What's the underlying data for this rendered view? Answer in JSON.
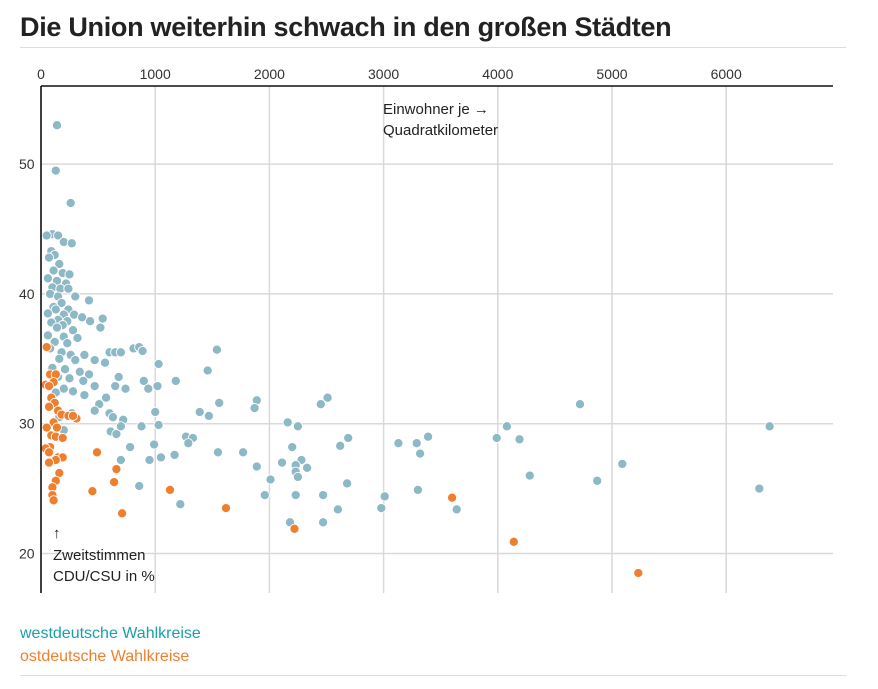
{
  "title": "Die Union weiterhin schwach in den großen Städten",
  "legend": {
    "west_label": "westdeutsche Wahlkreise",
    "east_label": "ostdeutsche Wahlkreise"
  },
  "colors": {
    "west": "#8db8c6",
    "east": "#f07f2d",
    "legend_west": "#1aa0a8",
    "legend_east": "#f07f2d"
  },
  "chart_data": {
    "type": "scatter",
    "title": "Die Union weiterhin schwach in den großen Städten",
    "x_label_lines": [
      "Einwohner je →",
      "Quadratkilometer"
    ],
    "y_label_lines": [
      "↑",
      "Zweitstimmen",
      "CDU/CSU in %"
    ],
    "xlim": [
      0,
      6900
    ],
    "ylim": [
      17,
      56
    ],
    "x_ticks": [
      0,
      1000,
      2000,
      3000,
      4000,
      5000,
      6000
    ],
    "y_ticks": [
      20,
      30,
      40,
      50
    ],
    "grid": true,
    "series": [
      {
        "name": "westdeutsche Wahlkreise",
        "points": [
          [
            140,
            53.0
          ],
          [
            130,
            49.5
          ],
          [
            260,
            47.0
          ],
          [
            100,
            44.6
          ],
          [
            150,
            44.5
          ],
          [
            50,
            44.5
          ],
          [
            200,
            44.0
          ],
          [
            270,
            43.9
          ],
          [
            90,
            43.3
          ],
          [
            120,
            43.0
          ],
          [
            70,
            42.8
          ],
          [
            160,
            42.3
          ],
          [
            110,
            41.8
          ],
          [
            190,
            41.6
          ],
          [
            250,
            41.5
          ],
          [
            60,
            41.2
          ],
          [
            140,
            41.0
          ],
          [
            220,
            40.8
          ],
          [
            100,
            40.5
          ],
          [
            170,
            40.4
          ],
          [
            240,
            40.4
          ],
          [
            80,
            40.0
          ],
          [
            150,
            39.8
          ],
          [
            300,
            39.8
          ],
          [
            420,
            39.5
          ],
          [
            180,
            39.3
          ],
          [
            110,
            39.0
          ],
          [
            130,
            38.8
          ],
          [
            240,
            38.8
          ],
          [
            60,
            38.5
          ],
          [
            200,
            38.4
          ],
          [
            290,
            38.4
          ],
          [
            360,
            38.2
          ],
          [
            540,
            38.1
          ],
          [
            150,
            38.0
          ],
          [
            230,
            37.9
          ],
          [
            90,
            37.8
          ],
          [
            190,
            37.6
          ],
          [
            430,
            37.9
          ],
          [
            520,
            37.4
          ],
          [
            140,
            37.4
          ],
          [
            280,
            37.2
          ],
          [
            60,
            36.8
          ],
          [
            200,
            36.7
          ],
          [
            320,
            36.6
          ],
          [
            120,
            36.3
          ],
          [
            230,
            36.2
          ],
          [
            80,
            35.8
          ],
          [
            600,
            35.5
          ],
          [
            650,
            35.5
          ],
          [
            700,
            35.5
          ],
          [
            810,
            35.8
          ],
          [
            860,
            35.9
          ],
          [
            890,
            35.6
          ],
          [
            180,
            35.5
          ],
          [
            260,
            35.3
          ],
          [
            380,
            35.3
          ],
          [
            160,
            35.0
          ],
          [
            300,
            34.9
          ],
          [
            470,
            34.9
          ],
          [
            560,
            34.7
          ],
          [
            1030,
            34.6
          ],
          [
            1460,
            34.1
          ],
          [
            210,
            34.2
          ],
          [
            100,
            34.3
          ],
          [
            340,
            34.0
          ],
          [
            420,
            33.8
          ],
          [
            150,
            33.6
          ],
          [
            250,
            33.5
          ],
          [
            680,
            33.6
          ],
          [
            370,
            33.3
          ],
          [
            900,
            33.3
          ],
          [
            1180,
            33.3
          ],
          [
            1020,
            32.9
          ],
          [
            940,
            32.7
          ],
          [
            470,
            32.9
          ],
          [
            650,
            32.9
          ],
          [
            740,
            32.7
          ],
          [
            200,
            32.7
          ],
          [
            280,
            32.5
          ],
          [
            130,
            32.4
          ],
          [
            380,
            32.2
          ],
          [
            570,
            32.0
          ],
          [
            510,
            31.5
          ],
          [
            1540,
            35.7
          ],
          [
            1890,
            31.8
          ],
          [
            1870,
            31.2
          ],
          [
            2510,
            32.0
          ],
          [
            2450,
            31.5
          ],
          [
            1560,
            31.6
          ],
          [
            600,
            30.8
          ],
          [
            630,
            30.5
          ],
          [
            470,
            31.0
          ],
          [
            270,
            30.8
          ],
          [
            160,
            30.5
          ],
          [
            1000,
            30.9
          ],
          [
            1390,
            30.9
          ],
          [
            1470,
            30.6
          ],
          [
            720,
            30.3
          ],
          [
            1030,
            29.9
          ],
          [
            880,
            29.8
          ],
          [
            2160,
            30.1
          ],
          [
            2250,
            29.8
          ],
          [
            610,
            29.4
          ],
          [
            660,
            29.2
          ],
          [
            700,
            29.8
          ],
          [
            200,
            29.5
          ],
          [
            1270,
            29.0
          ],
          [
            1330,
            28.9
          ],
          [
            1290,
            28.5
          ],
          [
            2690,
            28.9
          ],
          [
            2620,
            28.3
          ],
          [
            2200,
            28.2
          ],
          [
            780,
            28.2
          ],
          [
            990,
            28.4
          ],
          [
            1550,
            27.8
          ],
          [
            1770,
            27.8
          ],
          [
            1170,
            27.6
          ],
          [
            3130,
            28.5
          ],
          [
            3290,
            28.5
          ],
          [
            3390,
            29.0
          ],
          [
            3320,
            27.7
          ],
          [
            3990,
            28.9
          ],
          [
            4080,
            29.8
          ],
          [
            4190,
            28.8
          ],
          [
            4720,
            31.5
          ],
          [
            6380,
            29.8
          ],
          [
            700,
            27.2
          ],
          [
            950,
            27.2
          ],
          [
            1050,
            27.4
          ],
          [
            2110,
            27.0
          ],
          [
            2280,
            27.2
          ],
          [
            2230,
            26.8
          ],
          [
            2330,
            26.6
          ],
          [
            2230,
            26.3
          ],
          [
            1890,
            26.7
          ],
          [
            2250,
            25.9
          ],
          [
            2010,
            25.7
          ],
          [
            2680,
            25.4
          ],
          [
            4280,
            26.0
          ],
          [
            5090,
            26.9
          ],
          [
            4870,
            25.6
          ],
          [
            6290,
            25.0
          ],
          [
            860,
            25.2
          ],
          [
            3010,
            24.4
          ],
          [
            2230,
            24.5
          ],
          [
            2470,
            24.5
          ],
          [
            1960,
            24.5
          ],
          [
            3300,
            24.9
          ],
          [
            1220,
            23.8
          ],
          [
            2600,
            23.4
          ],
          [
            2980,
            23.5
          ],
          [
            3640,
            23.4
          ],
          [
            2180,
            22.4
          ],
          [
            2470,
            22.4
          ]
        ]
      },
      {
        "name": "ostdeutsche Wahlkreise",
        "points": [
          [
            50,
            35.9
          ],
          [
            80,
            33.8
          ],
          [
            130,
            33.8
          ],
          [
            40,
            33.0
          ],
          [
            110,
            33.2
          ],
          [
            70,
            32.9
          ],
          [
            90,
            32.0
          ],
          [
            120,
            31.6
          ],
          [
            70,
            31.3
          ],
          [
            150,
            31.0
          ],
          [
            180,
            30.7
          ],
          [
            240,
            30.6
          ],
          [
            310,
            30.4
          ],
          [
            280,
            30.6
          ],
          [
            110,
            30.1
          ],
          [
            50,
            29.7
          ],
          [
            140,
            29.7
          ],
          [
            90,
            29.1
          ],
          [
            130,
            29.0
          ],
          [
            190,
            28.9
          ],
          [
            80,
            28.2
          ],
          [
            40,
            28.1
          ],
          [
            70,
            27.8
          ],
          [
            150,
            27.4
          ],
          [
            190,
            27.4
          ],
          [
            130,
            27.2
          ],
          [
            70,
            27.0
          ],
          [
            490,
            27.8
          ],
          [
            660,
            26.5
          ],
          [
            160,
            26.2
          ],
          [
            130,
            25.6
          ],
          [
            100,
            25.1
          ],
          [
            640,
            25.5
          ],
          [
            100,
            24.5
          ],
          [
            450,
            24.8
          ],
          [
            1130,
            24.9
          ],
          [
            110,
            24.1
          ],
          [
            3600,
            24.3
          ],
          [
            1620,
            23.5
          ],
          [
            710,
            23.1
          ],
          [
            2220,
            21.9
          ],
          [
            4140,
            20.9
          ],
          [
            5230,
            18.5
          ]
        ]
      }
    ]
  }
}
